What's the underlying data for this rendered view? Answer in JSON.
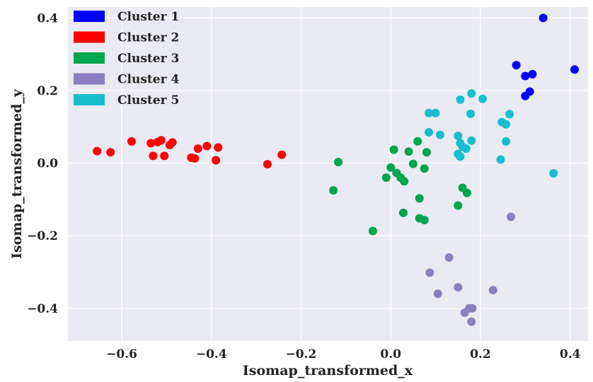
{
  "chart_data": {
    "type": "scatter",
    "xlabel": "Isomap_transformed_x",
    "ylabel": "Isomap_transformed_y",
    "xlim": [
      -0.72,
      0.44
    ],
    "ylim": [
      -0.49,
      0.43
    ],
    "xticks": [
      -0.6,
      -0.4,
      -0.2,
      0.0,
      0.2,
      0.4
    ],
    "xtick_labels": [
      "−0.6",
      "−0.4",
      "−0.2",
      "0.0",
      "0.2",
      "0.4"
    ],
    "yticks": [
      -0.4,
      -0.2,
      0.0,
      0.2,
      0.4
    ],
    "ytick_labels": [
      "−0.4",
      "−0.2",
      "0.0",
      "0.2",
      "0.4"
    ],
    "grid": true,
    "legend_position": "top-left",
    "series": [
      {
        "name": "Cluster 1",
        "color": "#0000ff",
        "points": [
          [
            0.34,
            0.4
          ],
          [
            0.28,
            0.27
          ],
          [
            0.316,
            0.245
          ],
          [
            0.3,
            0.24
          ],
          [
            0.41,
            0.258
          ],
          [
            0.31,
            0.197
          ],
          [
            0.3,
            0.185
          ]
        ]
      },
      {
        "name": "Cluster 2",
        "color": "#ff0000",
        "points": [
          [
            -0.655,
            0.033
          ],
          [
            -0.625,
            0.03
          ],
          [
            -0.578,
            0.06
          ],
          [
            -0.535,
            0.055
          ],
          [
            -0.52,
            0.058
          ],
          [
            -0.512,
            0.063
          ],
          [
            -0.53,
            0.02
          ],
          [
            -0.505,
            0.02
          ],
          [
            -0.493,
            0.05
          ],
          [
            -0.487,
            0.057
          ],
          [
            -0.445,
            0.015
          ],
          [
            -0.437,
            0.013
          ],
          [
            -0.43,
            0.04
          ],
          [
            -0.41,
            0.047
          ],
          [
            -0.39,
            0.008
          ],
          [
            -0.385,
            0.043
          ],
          [
            -0.275,
            -0.003
          ],
          [
            -0.243,
            0.023
          ]
        ]
      },
      {
        "name": "Cluster 3",
        "color": "#00a550",
        "points": [
          [
            -0.128,
            -0.075
          ],
          [
            -0.117,
            0.003
          ],
          [
            -0.04,
            -0.187
          ],
          [
            -0.01,
            -0.04
          ],
          [
            0.0,
            -0.012
          ],
          [
            0.007,
            0.037
          ],
          [
            0.013,
            -0.027
          ],
          [
            0.022,
            -0.04
          ],
          [
            0.03,
            -0.05
          ],
          [
            0.04,
            0.032
          ],
          [
            0.05,
            -0.002
          ],
          [
            0.06,
            0.06
          ],
          [
            0.064,
            -0.097
          ],
          [
            0.064,
            -0.152
          ],
          [
            0.075,
            -0.157
          ],
          [
            0.075,
            -0.015
          ],
          [
            0.08,
            0.03
          ],
          [
            0.028,
            -0.137
          ],
          [
            0.15,
            -0.117
          ],
          [
            0.16,
            -0.068
          ],
          [
            0.17,
            -0.082
          ]
        ]
      },
      {
        "name": "Cluster 4",
        "color": "#8c7fc0",
        "points": [
          [
            0.268,
            -0.148
          ],
          [
            0.13,
            -0.26
          ],
          [
            0.087,
            -0.302
          ],
          [
            0.105,
            -0.36
          ],
          [
            0.15,
            -0.342
          ],
          [
            0.228,
            -0.35
          ],
          [
            0.165,
            -0.412
          ],
          [
            0.175,
            -0.4
          ],
          [
            0.182,
            -0.4
          ],
          [
            0.18,
            -0.437
          ]
        ]
      },
      {
        "name": "Cluster 5",
        "color": "#17becf",
        "points": [
          [
            0.18,
            0.192
          ],
          [
            0.155,
            0.175
          ],
          [
            0.205,
            0.177
          ],
          [
            0.085,
            0.138
          ],
          [
            0.1,
            0.138
          ],
          [
            0.178,
            0.136
          ],
          [
            0.265,
            0.135
          ],
          [
            0.248,
            0.113
          ],
          [
            0.257,
            0.107
          ],
          [
            0.085,
            0.085
          ],
          [
            0.11,
            0.078
          ],
          [
            0.15,
            0.075
          ],
          [
            0.155,
            0.055
          ],
          [
            0.16,
            0.045
          ],
          [
            0.168,
            0.04
          ],
          [
            0.18,
            0.062
          ],
          [
            0.257,
            0.06
          ],
          [
            0.15,
            0.025
          ],
          [
            0.155,
            0.018
          ],
          [
            0.245,
            0.01
          ],
          [
            0.363,
            -0.028
          ]
        ]
      }
    ]
  }
}
